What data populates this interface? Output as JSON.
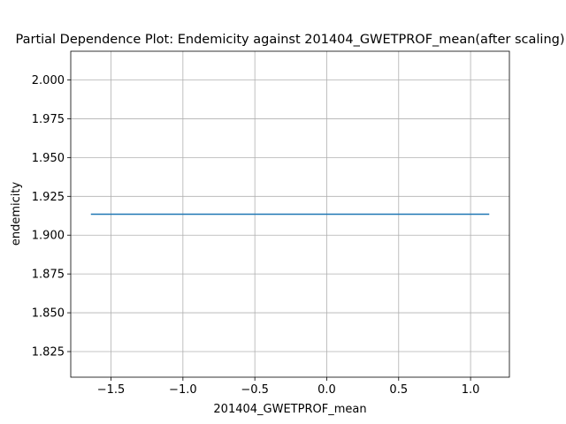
{
  "chart_data": {
    "type": "line",
    "title": "Partial Dependence Plot: Endemicity against 201404_GWETPROF_mean(after scaling)",
    "xlabel": "201404_GWETPROF_mean",
    "ylabel": "endemicity",
    "xlim": [
      -1.78,
      1.27
    ],
    "ylim": [
      1.8085,
      2.0185
    ],
    "xticks": [
      -1.5,
      -1.0,
      -0.5,
      0.0,
      0.5,
      1.0
    ],
    "xtick_labels": [
      "−1.5",
      "−1.0",
      "−0.5",
      "0.0",
      "0.5",
      "1.0"
    ],
    "yticks": [
      1.825,
      1.85,
      1.875,
      1.9,
      1.925,
      1.95,
      1.975,
      2.0
    ],
    "ytick_labels": [
      "1.825",
      "1.850",
      "1.875",
      "1.900",
      "1.925",
      "1.950",
      "1.975",
      "2.000"
    ],
    "grid": true,
    "series": [
      {
        "color": "#1f77b4",
        "x": [
          -1.64,
          1.13
        ],
        "y": [
          1.9135,
          1.9135
        ]
      }
    ]
  }
}
